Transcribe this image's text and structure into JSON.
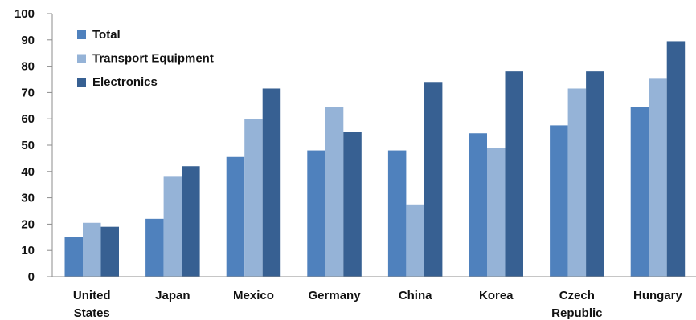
{
  "chart_data": {
    "type": "bar",
    "title": "",
    "xlabel": "",
    "ylabel": "",
    "ylim": [
      0,
      100
    ],
    "yticks": [
      0,
      10,
      20,
      30,
      40,
      50,
      60,
      70,
      80,
      90,
      100
    ],
    "grid": false,
    "legend_position": "top-left",
    "categories": [
      [
        "United",
        "States"
      ],
      [
        "Japan"
      ],
      [
        "Mexico"
      ],
      [
        "Germany"
      ],
      [
        "China"
      ],
      [
        "Korea"
      ],
      [
        "Czech",
        "Republic"
      ],
      [
        "Hungary"
      ]
    ],
    "series": [
      {
        "name": "Total",
        "color": "#4f81bd",
        "values": [
          15,
          22,
          45.5,
          48,
          48,
          54.5,
          57.5,
          64.5
        ]
      },
      {
        "name": "Transport Equipment",
        "color": "#95b3d7",
        "values": [
          20.5,
          38,
          60,
          64.5,
          27.5,
          49,
          71.5,
          75.5
        ]
      },
      {
        "name": "Electronics",
        "color": "#376092",
        "values": [
          19,
          42,
          71.5,
          55,
          74,
          78,
          78,
          89.5
        ]
      }
    ]
  }
}
